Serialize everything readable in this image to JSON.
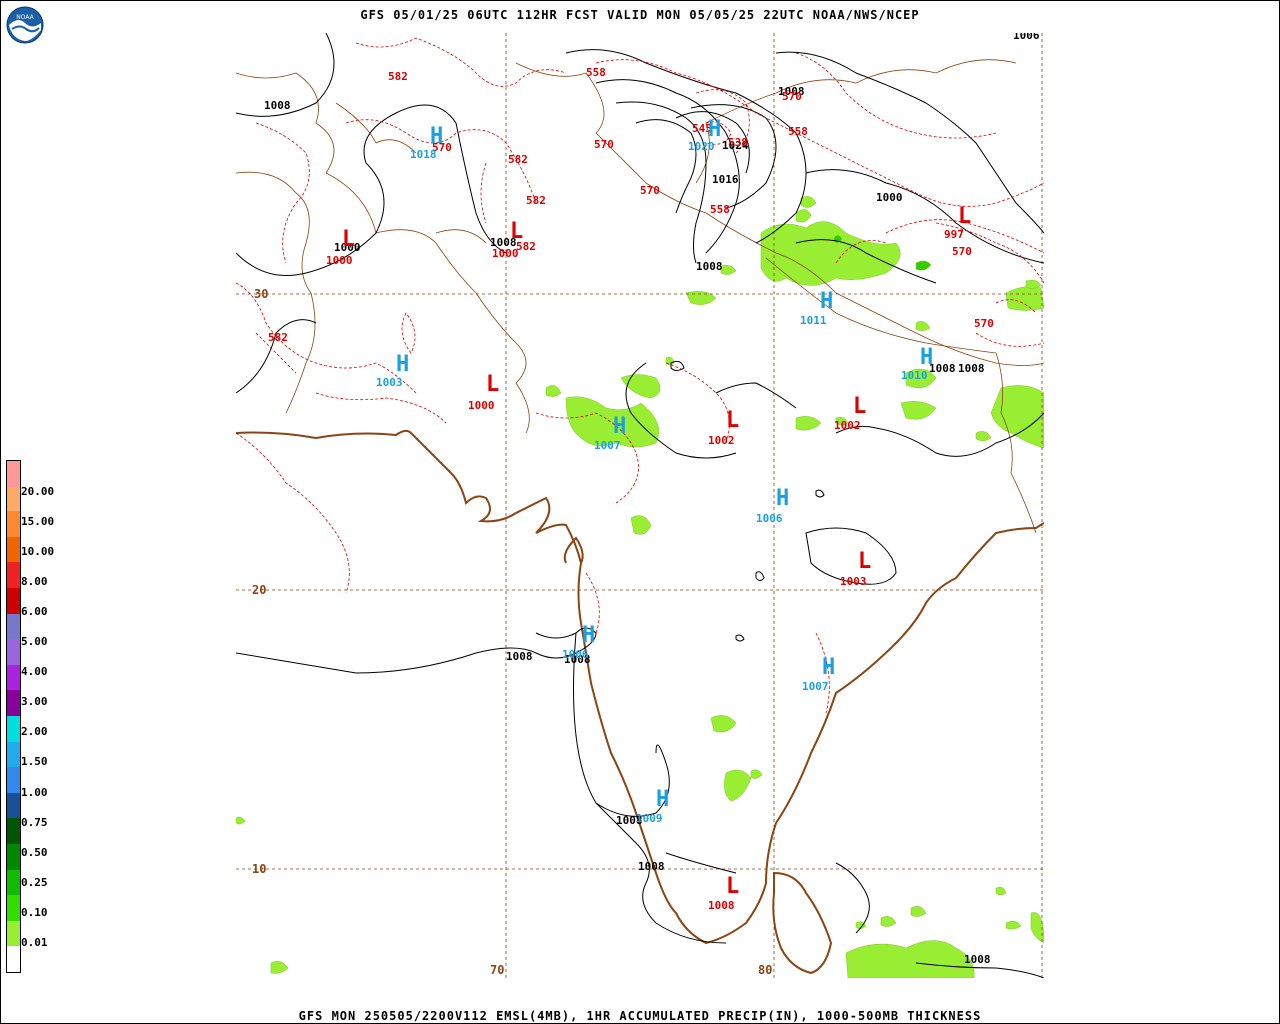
{
  "header": {
    "title": "GFS 05/01/25 06UTC 112HR FCST VALID MON 05/05/25 22UTC NOAA/NWS/NCEP"
  },
  "footer": {
    "caption": "GFS MON 250505/2200V112 EMSL(4MB), 1HR ACCUMULATED PRECIP(IN), 1000-500MB THICKNESS"
  },
  "logo": {
    "icon": "noaa-logo-icon",
    "text": "NOAA"
  },
  "colors": {
    "isobar": "#000000",
    "thickness": "#dd0000",
    "coast": "#8b4513",
    "grid": "#8b4513",
    "high": "#1aa0e0",
    "low": "#dd0000",
    "precip_light": "#99ee33"
  },
  "legend": {
    "labels": [
      "0.01",
      "0.10",
      "0.25",
      "0.50",
      "0.75",
      "1.00",
      "1.50",
      "2.00",
      "3.00",
      "4.00",
      "5.00",
      "6.00",
      "8.00",
      "10.00",
      "15.00",
      "20.00"
    ],
    "colors": [
      "#ffffff",
      "#99ee33",
      "#33dd00",
      "#11bb00",
      "#008800",
      "#005500",
      "#1a4f9a",
      "#3388ee",
      "#22aaee",
      "#00dddd",
      "#880099",
      "#aa22dd",
      "#9966dd",
      "#7777cc",
      "#cc0000",
      "#ee2222",
      "#ee6600",
      "#ff8833",
      "#ffaa66",
      "#ff9999"
    ]
  },
  "grid_labels": [
    {
      "text": "30"
    },
    {
      "text": "20"
    },
    {
      "text": "10"
    },
    {
      "text": "70"
    },
    {
      "text": "80"
    }
  ],
  "isobar_labels": [
    "1008",
    "1008",
    "1000",
    "1008",
    "1016",
    "1024",
    "1008",
    "1000",
    "1008",
    "1008",
    "1008",
    "1008",
    "1008",
    "1008",
    "1006",
    "1008"
  ],
  "thickness_labels": [
    "582",
    "558",
    "570",
    "558",
    "545",
    "538",
    "570",
    "570",
    "582",
    "582",
    "570",
    "558",
    "582",
    "570",
    "582",
    "570"
  ],
  "highs": [
    {
      "letter": "H",
      "value": "1018"
    },
    {
      "letter": "H",
      "value": "1020"
    },
    {
      "letter": "H",
      "value": "1011"
    },
    {
      "letter": "H",
      "value": "1010"
    },
    {
      "letter": "H",
      "value": "1003"
    },
    {
      "letter": "H",
      "value": "1007"
    },
    {
      "letter": "H",
      "value": "1006"
    },
    {
      "letter": "H",
      "value": "1006"
    },
    {
      "letter": "H",
      "value": "1007"
    },
    {
      "letter": "H",
      "value": "1009"
    }
  ],
  "lows": [
    {
      "letter": "L",
      "value": "1000"
    },
    {
      "letter": "L",
      "value": "1000"
    },
    {
      "letter": "L",
      "value": "997"
    },
    {
      "letter": "L",
      "value": "1000"
    },
    {
      "letter": "L",
      "value": "1002"
    },
    {
      "letter": "L",
      "value": "1002"
    },
    {
      "letter": "L",
      "value": "1003"
    },
    {
      "letter": "L",
      "value": "1008"
    }
  ]
}
